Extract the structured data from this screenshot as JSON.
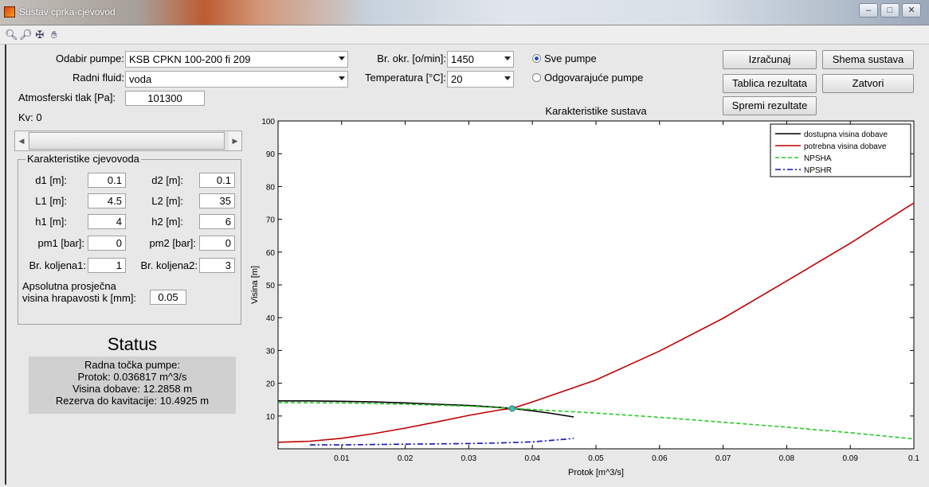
{
  "window": {
    "title": "Sustav cprka-cjevovod",
    "controls": [
      "–",
      "□",
      "✕"
    ]
  },
  "toolbar": {
    "icons": [
      "zoom-in-icon",
      "zoom-out-icon",
      "data-cursor-icon",
      "pan-hand-icon"
    ]
  },
  "form": {
    "pump_label": "Odabir pumpe:",
    "pump_value": "KSB CPKN 100-200 fi 209",
    "fluid_label": "Radni fluid:",
    "fluid_value": "voda",
    "atm_label": "Atmosferski tlak [Pa]:",
    "atm_value": "101300",
    "kv_label": "Kv: 0",
    "rpm_label": "Br. okr. [o/min]:",
    "rpm_value": "1450",
    "temp_label": "Temperatura [°C]:",
    "temp_value": "20",
    "radio_all": "Sve pumpe",
    "radio_match": "Odgovarajuće pumpe",
    "slider_fraction": 0.0
  },
  "buttons": {
    "calculate": "Izračunaj",
    "scheme": "Shema sustava",
    "table": "Tablica rezultata",
    "close": "Zatvori",
    "save": "Spremi rezultate"
  },
  "pipeline": {
    "title": "Karakteristike cjevovoda",
    "d1_label": "d1 [m]:",
    "d1_value": "0.1",
    "d2_label": "d2 [m]:",
    "d2_value": "0.1",
    "l1_label": "L1 [m]:",
    "l1_value": "4.5",
    "l2_label": "L2 [m]:",
    "l2_value": "35",
    "h1_label": "h1 [m]:",
    "h1_value": "4",
    "h2_label": "h2 [m]:",
    "h2_value": "6",
    "pm1_label": "pm1 [bar]:",
    "pm1_value": "0",
    "pm2_label": "pm2 [bar]:",
    "pm2_value": "0",
    "bk1_label": "Br. koljena1:",
    "bk1_value": "1",
    "bk2_label": "Br. koljena2:",
    "bk2_value": "3",
    "k_label_line1": "Apsolutna prosječna",
    "k_label_line2": "visina hrapavosti k [mm]:",
    "k_value": "0.05"
  },
  "status": {
    "title": "Status",
    "line1": "Radna točka pumpe:",
    "line2": "Protok: 0.036817 m^3/s",
    "line3": "Visina dobave: 12.2858 m",
    "line4": "Rezerva do kavitacije: 10.4925 m"
  },
  "chart_data": {
    "type": "line",
    "title": "Karakteristike sustava",
    "xlabel": "Protok [m^3/s]",
    "ylabel": "Visina [m]",
    "xlim": [
      0,
      0.1
    ],
    "ylim": [
      0,
      100
    ],
    "xticks": [
      0.01,
      0.02,
      0.03,
      0.04,
      0.05,
      0.06,
      0.07,
      0.08,
      0.09,
      0.1
    ],
    "xtick_labels": [
      "0.01",
      "0.02",
      "0.03",
      "0.04",
      "0.05",
      "0.06",
      "0.07",
      "0.08",
      "0.09",
      "0.1"
    ],
    "yticks": [
      10,
      20,
      30,
      40,
      50,
      60,
      70,
      80,
      90,
      100
    ],
    "ytick_labels": [
      "10",
      "20",
      "30",
      "40",
      "50",
      "60",
      "70",
      "80",
      "90",
      "100"
    ],
    "legend_position": "top-right",
    "series": [
      {
        "name": "dostupna visina dobave",
        "color": "#000000",
        "dash": "solid",
        "x": [
          0,
          0.005,
          0.01,
          0.015,
          0.02,
          0.025,
          0.03,
          0.035,
          0.0368,
          0.04,
          0.043,
          0.0465
        ],
        "y": [
          14.6,
          14.6,
          14.5,
          14.3,
          14.0,
          13.6,
          13.2,
          12.6,
          12.3,
          11.6,
          10.8,
          9.7
        ]
      },
      {
        "name": "potrebna visina dobave",
        "color": "#c00000",
        "dash": "solid",
        "x": [
          0,
          0.005,
          0.01,
          0.015,
          0.02,
          0.025,
          0.03,
          0.035,
          0.0368,
          0.04,
          0.05,
          0.06,
          0.07,
          0.08,
          0.09,
          0.1
        ],
        "y": [
          2.0,
          2.3,
          3.2,
          4.6,
          6.3,
          8.2,
          10.2,
          11.9,
          12.3,
          14.3,
          21.0,
          29.8,
          39.8,
          51.2,
          62.7,
          75.0
        ]
      },
      {
        "name": "NPSHA",
        "color": "#22cc22",
        "dash": "dashed",
        "x": [
          0,
          0.01,
          0.02,
          0.03,
          0.0368,
          0.04,
          0.05,
          0.06,
          0.07,
          0.08,
          0.09,
          0.1
        ],
        "y": [
          14.1,
          14.0,
          13.6,
          13.0,
          12.3,
          12.0,
          10.9,
          9.6,
          8.1,
          6.6,
          4.9,
          3.0
        ]
      },
      {
        "name": "NPSHR",
        "color": "#1010c0",
        "dash": "dashdot",
        "x": [
          0.005,
          0.01,
          0.015,
          0.02,
          0.025,
          0.03,
          0.035,
          0.04,
          0.045,
          0.0465
        ],
        "y": [
          1.2,
          1.2,
          1.3,
          1.4,
          1.5,
          1.6,
          1.8,
          2.1,
          2.9,
          3.2
        ]
      }
    ],
    "operating_point": {
      "x": 0.036817,
      "y": 12.2858,
      "color": "#40c0c0"
    }
  }
}
